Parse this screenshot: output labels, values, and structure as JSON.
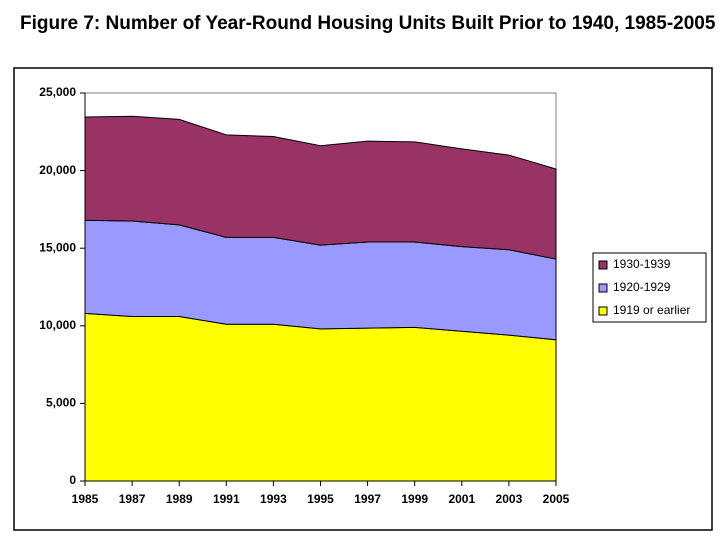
{
  "chart_data": {
    "type": "stacked-area",
    "title": "Figure 7:  Number of Year-Round Housing Units Built Prior to 1940, 1985-2005",
    "categories": [
      "1985",
      "1987",
      "1989",
      "1991",
      "1993",
      "1995",
      "1997",
      "1999",
      "2001",
      "2003",
      "2005"
    ],
    "series": [
      {
        "name": "1919 or earlier",
        "color": "#ffff00",
        "values": [
          10800,
          10600,
          10600,
          10100,
          10100,
          9800,
          9850,
          9900,
          9650,
          9400,
          9100
        ]
      },
      {
        "name": "1920-1929",
        "color": "#9999ff",
        "values": [
          6000,
          6150,
          5900,
          5600,
          5600,
          5400,
          5550,
          5500,
          5450,
          5500,
          5200
        ]
      },
      {
        "name": "1930-1939",
        "color": "#993366",
        "values": [
          6650,
          6750,
          6800,
          6600,
          6500,
          6400,
          6500,
          6450,
          6300,
          6100,
          5800
        ]
      }
    ],
    "ylim": [
      0,
      25000
    ],
    "yticks": [
      0,
      {
        "value": 5000,
        "label": "5,000"
      },
      {
        "value": 10000,
        "label": "10,000"
      },
      {
        "value": 15000,
        "label": "15,000"
      },
      {
        "value": 20000,
        "label": "20,000"
      },
      {
        "value": 25000,
        "label": "25,000"
      }
    ],
    "legend": "right"
  }
}
